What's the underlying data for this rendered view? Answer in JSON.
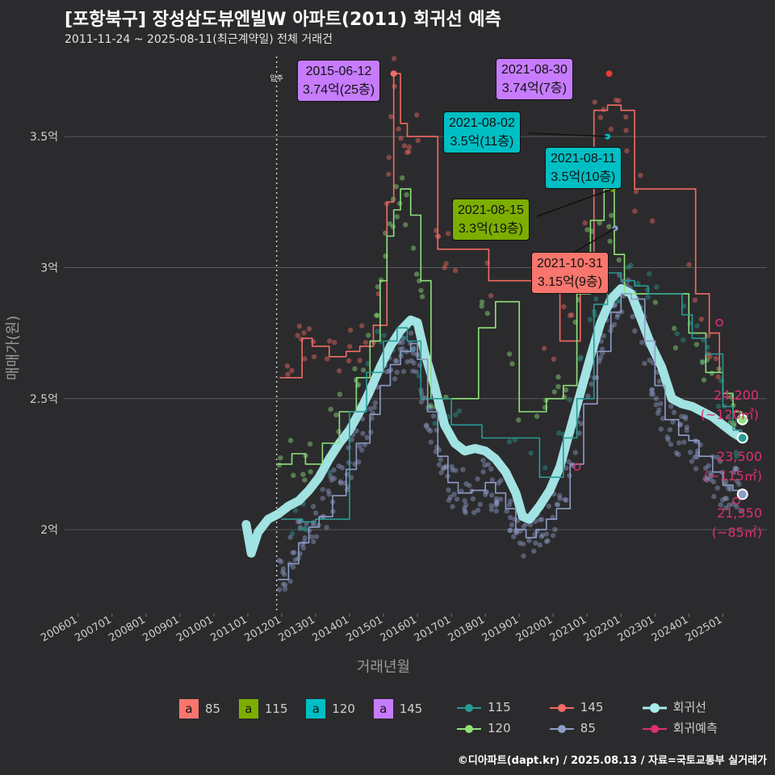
{
  "title": "[포항북구] 장성삼도뷰엔빌W 아파트(2011) 회귀선 예측",
  "subtitle": "2011-11-24 ~ 2025-08-11(최근계약일) 전체 거래건",
  "footer": "©디아파트(dapt.kr) / 2025.08.13 / 자료=국토교통부 실거래가",
  "colors": {
    "background": "#2b2b2d",
    "c85": "#f8766d",
    "c115": "#7cae00",
    "c120": "#00bfc4",
    "c145": "#c77cff",
    "line85": "#8e9cc7",
    "line115": "#2a9a94",
    "line120": "#8fe27a",
    "line145": "#f36b64",
    "regression": "#a8ecec",
    "forecast": "#e0306f"
  },
  "chart_data": {
    "type": "line",
    "xlabel": "거래년월",
    "ylabel": "매매가(원)",
    "x_ticks": [
      "200601",
      "200701",
      "200801",
      "200901",
      "201001",
      "201101",
      "201201",
      "201301",
      "201401",
      "201501",
      "201601",
      "201701",
      "201801",
      "201901",
      "202001",
      "202101",
      "202201",
      "202301",
      "202401",
      "202501"
    ],
    "y_ticks": [
      "2억",
      "2.5억",
      "3억",
      "3.5억"
    ],
    "y_tick_values": [
      2.0,
      2.5,
      3.0,
      3.5
    ],
    "xlim": [
      2005.6,
      2026.3
    ],
    "ylim": [
      1.68,
      3.83
    ],
    "move_in_marker": {
      "x": 2011.85,
      "label": "입주"
    },
    "series": [
      {
        "name": "회귀선",
        "points": [
          [
            2010.95,
            2.02
          ],
          [
            2011.1,
            1.91
          ],
          [
            2011.3,
            1.99
          ],
          [
            2011.6,
            2.04
          ],
          [
            2011.9,
            2.06
          ],
          [
            2012.2,
            2.09
          ],
          [
            2012.5,
            2.11
          ],
          [
            2012.8,
            2.15
          ],
          [
            2013.1,
            2.2
          ],
          [
            2013.4,
            2.27
          ],
          [
            2013.7,
            2.33
          ],
          [
            2014.0,
            2.38
          ],
          [
            2014.3,
            2.45
          ],
          [
            2014.6,
            2.53
          ],
          [
            2014.9,
            2.62
          ],
          [
            2015.2,
            2.7
          ],
          [
            2015.5,
            2.76
          ],
          [
            2015.8,
            2.8
          ],
          [
            2016.0,
            2.79
          ],
          [
            2016.2,
            2.68
          ],
          [
            2016.5,
            2.55
          ],
          [
            2016.8,
            2.4
          ],
          [
            2017.1,
            2.33
          ],
          [
            2017.4,
            2.3
          ],
          [
            2017.7,
            2.31
          ],
          [
            2018.0,
            2.3
          ],
          [
            2018.3,
            2.27
          ],
          [
            2018.6,
            2.22
          ],
          [
            2018.9,
            2.14
          ],
          [
            2019.1,
            2.05
          ],
          [
            2019.3,
            2.04
          ],
          [
            2019.6,
            2.09
          ],
          [
            2019.9,
            2.15
          ],
          [
            2020.2,
            2.24
          ],
          [
            2020.5,
            2.38
          ],
          [
            2020.8,
            2.52
          ],
          [
            2021.1,
            2.66
          ],
          [
            2021.4,
            2.79
          ],
          [
            2021.7,
            2.88
          ],
          [
            2022.0,
            2.92
          ],
          [
            2022.3,
            2.9
          ],
          [
            2022.6,
            2.8
          ],
          [
            2022.9,
            2.7
          ],
          [
            2023.2,
            2.62
          ],
          [
            2023.5,
            2.5
          ],
          [
            2023.8,
            2.48
          ],
          [
            2024.1,
            2.47
          ],
          [
            2024.4,
            2.45
          ],
          [
            2024.7,
            2.43
          ],
          [
            2025.0,
            2.4
          ],
          [
            2025.3,
            2.37
          ],
          [
            2025.55,
            2.35
          ]
        ]
      },
      {
        "name": "85",
        "points": [
          [
            2011.9,
            1.81
          ],
          [
            2012.2,
            1.87
          ],
          [
            2012.5,
            1.95
          ],
          [
            2012.8,
            2.01
          ],
          [
            2013.1,
            2.05
          ],
          [
            2013.5,
            2.13
          ],
          [
            2013.9,
            2.23
          ],
          [
            2014.2,
            2.33
          ],
          [
            2014.6,
            2.44
          ],
          [
            2014.9,
            2.55
          ],
          [
            2015.2,
            2.63
          ],
          [
            2015.5,
            2.68
          ],
          [
            2015.8,
            2.71
          ],
          [
            2016.0,
            2.65
          ],
          [
            2016.3,
            2.45
          ],
          [
            2016.6,
            2.28
          ],
          [
            2016.9,
            2.18
          ],
          [
            2017.2,
            2.14
          ],
          [
            2017.6,
            2.15
          ],
          [
            2018.0,
            2.18
          ],
          [
            2018.3,
            2.14
          ],
          [
            2018.6,
            2.08
          ],
          [
            2018.9,
            2.0
          ],
          [
            2019.2,
            1.97
          ],
          [
            2019.5,
            2.0
          ],
          [
            2019.8,
            2.04
          ],
          [
            2020.1,
            2.08
          ],
          [
            2020.5,
            2.25
          ],
          [
            2020.9,
            2.48
          ],
          [
            2021.3,
            2.68
          ],
          [
            2021.7,
            2.83
          ],
          [
            2022.0,
            2.9
          ],
          [
            2022.3,
            2.88
          ],
          [
            2022.7,
            2.72
          ],
          [
            2023.0,
            2.55
          ],
          [
            2023.3,
            2.42
          ],
          [
            2023.7,
            2.36
          ],
          [
            2024.0,
            2.34
          ],
          [
            2024.3,
            2.28
          ],
          [
            2024.7,
            2.22
          ],
          [
            2025.0,
            2.17
          ],
          [
            2025.3,
            2.15
          ],
          [
            2025.55,
            2.14
          ]
        ]
      },
      {
        "name": "115",
        "points": [
          [
            2012.0,
            2.04
          ],
          [
            2012.6,
            2.03
          ],
          [
            2013.0,
            2.04
          ],
          [
            2014.0,
            2.45
          ],
          [
            2014.5,
            2.6
          ],
          [
            2015.0,
            2.72
          ],
          [
            2015.4,
            2.77
          ],
          [
            2015.7,
            2.72
          ],
          [
            2016.1,
            2.5
          ],
          [
            2017.0,
            2.4
          ],
          [
            2017.9,
            2.35
          ],
          [
            2019.6,
            2.2
          ],
          [
            2020.3,
            2.35
          ],
          [
            2020.7,
            2.5
          ],
          [
            2021.2,
            2.86
          ],
          [
            2021.6,
            2.98
          ],
          [
            2022.0,
            2.95
          ],
          [
            2022.4,
            2.93
          ],
          [
            2022.8,
            2.9
          ],
          [
            2023.8,
            2.82
          ],
          [
            2024.1,
            2.73
          ],
          [
            2024.5,
            2.67
          ],
          [
            2025.0,
            2.47
          ],
          [
            2025.3,
            2.38
          ],
          [
            2025.55,
            2.35
          ]
        ]
      },
      {
        "name": "120",
        "points": [
          [
            2011.9,
            2.25
          ],
          [
            2012.3,
            2.29
          ],
          [
            2012.7,
            2.25
          ],
          [
            2013.2,
            2.33
          ],
          [
            2013.7,
            2.45
          ],
          [
            2014.2,
            2.58
          ],
          [
            2014.6,
            2.72
          ],
          [
            2014.9,
            2.95
          ],
          [
            2015.1,
            3.12
          ],
          [
            2015.3,
            3.22
          ],
          [
            2015.5,
            3.3
          ],
          [
            2015.8,
            3.2
          ],
          [
            2016.1,
            2.95
          ],
          [
            2016.4,
            2.5
          ],
          [
            2017.8,
            2.77
          ],
          [
            2018.3,
            2.87
          ],
          [
            2019.0,
            2.45
          ],
          [
            2019.8,
            2.5
          ],
          [
            2020.3,
            2.55
          ],
          [
            2020.7,
            2.9
          ],
          [
            2021.1,
            3.18
          ],
          [
            2021.5,
            3.3
          ],
          [
            2021.8,
            3.05
          ],
          [
            2022.1,
            2.9
          ],
          [
            2024.0,
            2.75
          ],
          [
            2024.5,
            2.6
          ],
          [
            2025.0,
            2.52
          ],
          [
            2025.3,
            2.45
          ],
          [
            2025.55,
            2.42
          ]
        ]
      },
      {
        "name": "145",
        "points": [
          [
            2011.95,
            2.58
          ],
          [
            2012.3,
            2.58
          ],
          [
            2012.6,
            2.73
          ],
          [
            2012.9,
            2.7
          ],
          [
            2013.4,
            2.66
          ],
          [
            2013.9,
            2.68
          ],
          [
            2014.3,
            2.7
          ],
          [
            2014.7,
            2.78
          ],
          [
            2015.1,
            3.25
          ],
          [
            2015.3,
            3.74
          ],
          [
            2015.5,
            3.55
          ],
          [
            2015.7,
            3.5
          ],
          [
            2016.0,
            3.5
          ],
          [
            2016.6,
            3.07
          ],
          [
            2016.9,
            3.07
          ],
          [
            2018.1,
            2.95
          ],
          [
            2020.2,
            2.72
          ],
          [
            2020.8,
            3.0
          ],
          [
            2021.2,
            3.6
          ],
          [
            2021.6,
            3.62
          ],
          [
            2022.0,
            3.6
          ],
          [
            2022.4,
            3.3
          ],
          [
            2022.8,
            3.3
          ],
          [
            2024.2,
            2.9
          ],
          [
            2024.6,
            2.75
          ],
          [
            2024.9,
            2.6
          ]
        ]
      }
    ],
    "callouts": [
      {
        "date": "2015-06-12",
        "value": "3.74억(25층)",
        "area": "145"
      },
      {
        "date": "2021-08-30",
        "value": "3.74억(7층)",
        "area": "145"
      },
      {
        "date": "2021-08-02",
        "value": "3.5억(11층)",
        "area": "120"
      },
      {
        "date": "2021-08-11",
        "value": "3.5억(10층)",
        "area": "120"
      },
      {
        "date": "2021-08-15",
        "value": "3.3억(19층)",
        "area": "115"
      },
      {
        "date": "2021-10-31",
        "value": "3.15억(9층)",
        "area": "85"
      }
    ],
    "forecast_labels": [
      {
        "value": "24,200",
        "area": "(~120㎡)",
        "y": 2.42
      },
      {
        "value": "23,500",
        "area": "(~115㎡)",
        "y": 2.35
      },
      {
        "value": "21,350",
        "area": "(~85㎡)",
        "y": 2.135
      }
    ],
    "legend_area": [
      "85",
      "115",
      "120",
      "145"
    ],
    "legend_area_glyph": "a",
    "legend_lines": [
      "115",
      "145",
      "회귀선",
      "120",
      "85",
      "회귀예측"
    ]
  }
}
